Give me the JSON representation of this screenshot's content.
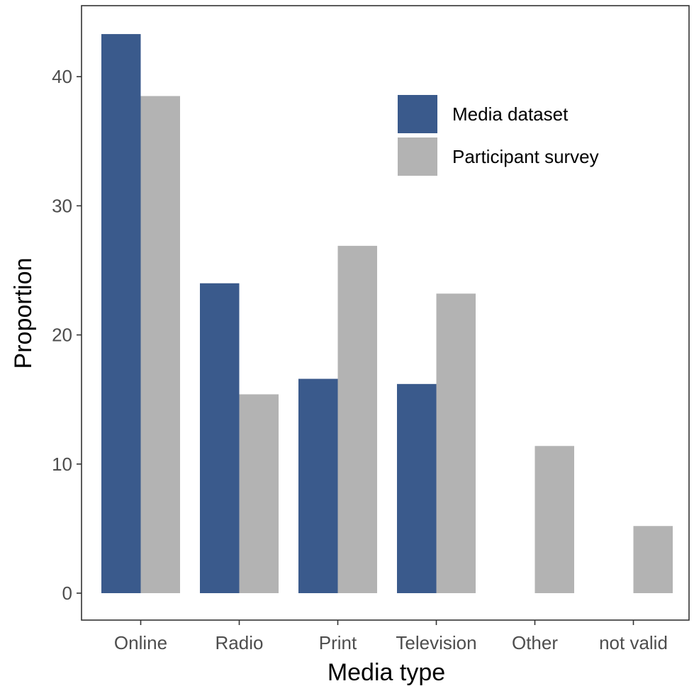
{
  "chart_data": {
    "type": "bar",
    "title": "",
    "xlabel": "Media type",
    "ylabel": "Proportion",
    "categories": [
      "Online",
      "Radio",
      "Print",
      "Television",
      "Other",
      "not valid"
    ],
    "series": [
      {
        "name": "Media dataset",
        "color": "#3a5a8c",
        "values": [
          43.3,
          24.0,
          16.6,
          16.2,
          null,
          null
        ]
      },
      {
        "name": "Participant survey",
        "color": "#b3b3b3",
        "values": [
          38.5,
          15.4,
          26.9,
          23.2,
          11.4,
          5.2
        ]
      }
    ],
    "ylim": [
      0,
      45
    ],
    "yticks": [
      0,
      10,
      20,
      30,
      40
    ],
    "grid": false,
    "legend_position": "top-right"
  }
}
